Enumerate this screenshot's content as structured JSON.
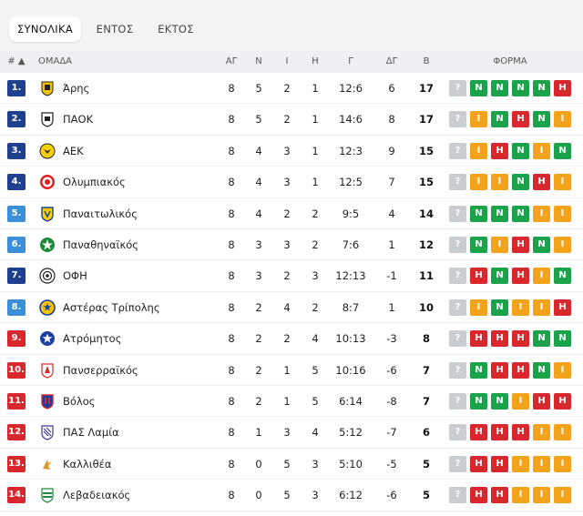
{
  "tabs": [
    {
      "label": "ΣΥΝΟΛΙΚΑ",
      "active": true
    },
    {
      "label": "ΕΝΤΟΣ",
      "active": false
    },
    {
      "label": "ΕΚΤΟΣ",
      "active": false
    }
  ],
  "headers": {
    "rank": "# ▲",
    "team": "ΟΜΑΔΑ",
    "played": "ΑΓ",
    "won": "Ν",
    "drawn": "Ι",
    "lost": "Η",
    "goals": "Γ",
    "diff": "ΔΓ",
    "points": "Β",
    "form": "ΦΟΡΜΑ"
  },
  "colors": {
    "rank_dark": "#1f3f8f",
    "rank_light": "#3a8fd8",
    "rank_red": "#d9272e",
    "win": "#1aa34a",
    "draw": "#f2a31b",
    "loss": "#d9272e",
    "unknown": "#c9cdd2"
  },
  "rows": [
    {
      "rank": "1.",
      "zone": "dark",
      "team": "Άρης",
      "logo": "aris-logo",
      "played": "8",
      "won": "5",
      "drawn": "2",
      "lost": "1",
      "goals": "12:6",
      "diff": "6",
      "points": "17",
      "form": [
        "?",
        "N",
        "N",
        "N",
        "N",
        "H"
      ]
    },
    {
      "rank": "2.",
      "zone": "dark",
      "team": "ΠΑΟΚ",
      "logo": "paok-logo",
      "played": "8",
      "won": "5",
      "drawn": "2",
      "lost": "1",
      "goals": "14:6",
      "diff": "8",
      "points": "17",
      "form": [
        "?",
        "I",
        "N",
        "H",
        "N",
        "I"
      ]
    },
    {
      "rank": "3.",
      "zone": "dark",
      "team": "ΑΕΚ",
      "logo": "aek-logo",
      "played": "8",
      "won": "4",
      "drawn": "3",
      "lost": "1",
      "goals": "12:3",
      "diff": "9",
      "points": "15",
      "form": [
        "?",
        "I",
        "H",
        "N",
        "I",
        "N"
      ]
    },
    {
      "rank": "4.",
      "zone": "dark",
      "team": "Ολυμπιακός",
      "logo": "olympiacos-logo",
      "played": "8",
      "won": "4",
      "drawn": "3",
      "lost": "1",
      "goals": "12:5",
      "diff": "7",
      "points": "15",
      "form": [
        "?",
        "I",
        "I",
        "N",
        "H",
        "I"
      ]
    },
    {
      "rank": "5.",
      "zone": "light",
      "team": "Παναιτωλικός",
      "logo": "panetolikos-logo",
      "played": "8",
      "won": "4",
      "drawn": "2",
      "lost": "2",
      "goals": "9:5",
      "diff": "4",
      "points": "14",
      "form": [
        "?",
        "N",
        "N",
        "N",
        "I",
        "I"
      ]
    },
    {
      "rank": "6.",
      "zone": "light",
      "team": "Παναθηναϊκός",
      "logo": "panathinaikos-logo",
      "played": "8",
      "won": "3",
      "drawn": "3",
      "lost": "2",
      "goals": "7:6",
      "diff": "1",
      "points": "12",
      "form": [
        "?",
        "N",
        "I",
        "H",
        "N",
        "I"
      ]
    },
    {
      "rank": "7.",
      "zone": "dark",
      "team": "ΟΦΗ",
      "logo": "ofi-logo",
      "played": "8",
      "won": "3",
      "drawn": "2",
      "lost": "3",
      "goals": "12:13",
      "diff": "-1",
      "points": "11",
      "form": [
        "?",
        "H",
        "N",
        "H",
        "I",
        "N"
      ]
    },
    {
      "rank": "8.",
      "zone": "light",
      "team": "Αστέρας Τρίπολης",
      "logo": "asteras-logo",
      "played": "8",
      "won": "2",
      "drawn": "4",
      "lost": "2",
      "goals": "8:7",
      "diff": "1",
      "points": "10",
      "form": [
        "?",
        "I",
        "N",
        "I",
        "I",
        "H"
      ]
    },
    {
      "rank": "9.",
      "zone": "red",
      "team": "Ατρόμητος",
      "logo": "atromitos-logo",
      "played": "8",
      "won": "2",
      "drawn": "2",
      "lost": "4",
      "goals": "10:13",
      "diff": "-3",
      "points": "8",
      "form": [
        "?",
        "H",
        "H",
        "H",
        "N",
        "N"
      ]
    },
    {
      "rank": "10.",
      "zone": "red",
      "team": "Πανσερραϊκός",
      "logo": "panserraikos-logo",
      "played": "8",
      "won": "2",
      "drawn": "1",
      "lost": "5",
      "goals": "10:16",
      "diff": "-6",
      "points": "7",
      "form": [
        "?",
        "N",
        "H",
        "H",
        "N",
        "I"
      ]
    },
    {
      "rank": "11.",
      "zone": "red",
      "team": "Βόλος",
      "logo": "volos-logo",
      "played": "8",
      "won": "2",
      "drawn": "1",
      "lost": "5",
      "goals": "6:14",
      "diff": "-8",
      "points": "7",
      "form": [
        "?",
        "N",
        "N",
        "I",
        "H",
        "H"
      ]
    },
    {
      "rank": "12.",
      "zone": "red",
      "team": "ΠΑΣ Λαμία",
      "logo": "lamia-logo",
      "played": "8",
      "won": "1",
      "drawn": "3",
      "lost": "4",
      "goals": "5:12",
      "diff": "-7",
      "points": "6",
      "form": [
        "?",
        "H",
        "H",
        "H",
        "I",
        "I"
      ]
    },
    {
      "rank": "13.",
      "zone": "red",
      "team": "Καλλιθέα",
      "logo": "kallithea-logo",
      "played": "8",
      "won": "0",
      "drawn": "5",
      "lost": "3",
      "goals": "5:10",
      "diff": "-5",
      "points": "5",
      "form": [
        "?",
        "H",
        "H",
        "I",
        "I",
        "I"
      ]
    },
    {
      "rank": "14.",
      "zone": "red",
      "team": "Λεβαδειακός",
      "logo": "levadiakos-logo",
      "played": "8",
      "won": "0",
      "drawn": "5",
      "lost": "3",
      "goals": "6:12",
      "diff": "-6",
      "points": "5",
      "form": [
        "?",
        "H",
        "H",
        "I",
        "I",
        "I"
      ]
    }
  ]
}
